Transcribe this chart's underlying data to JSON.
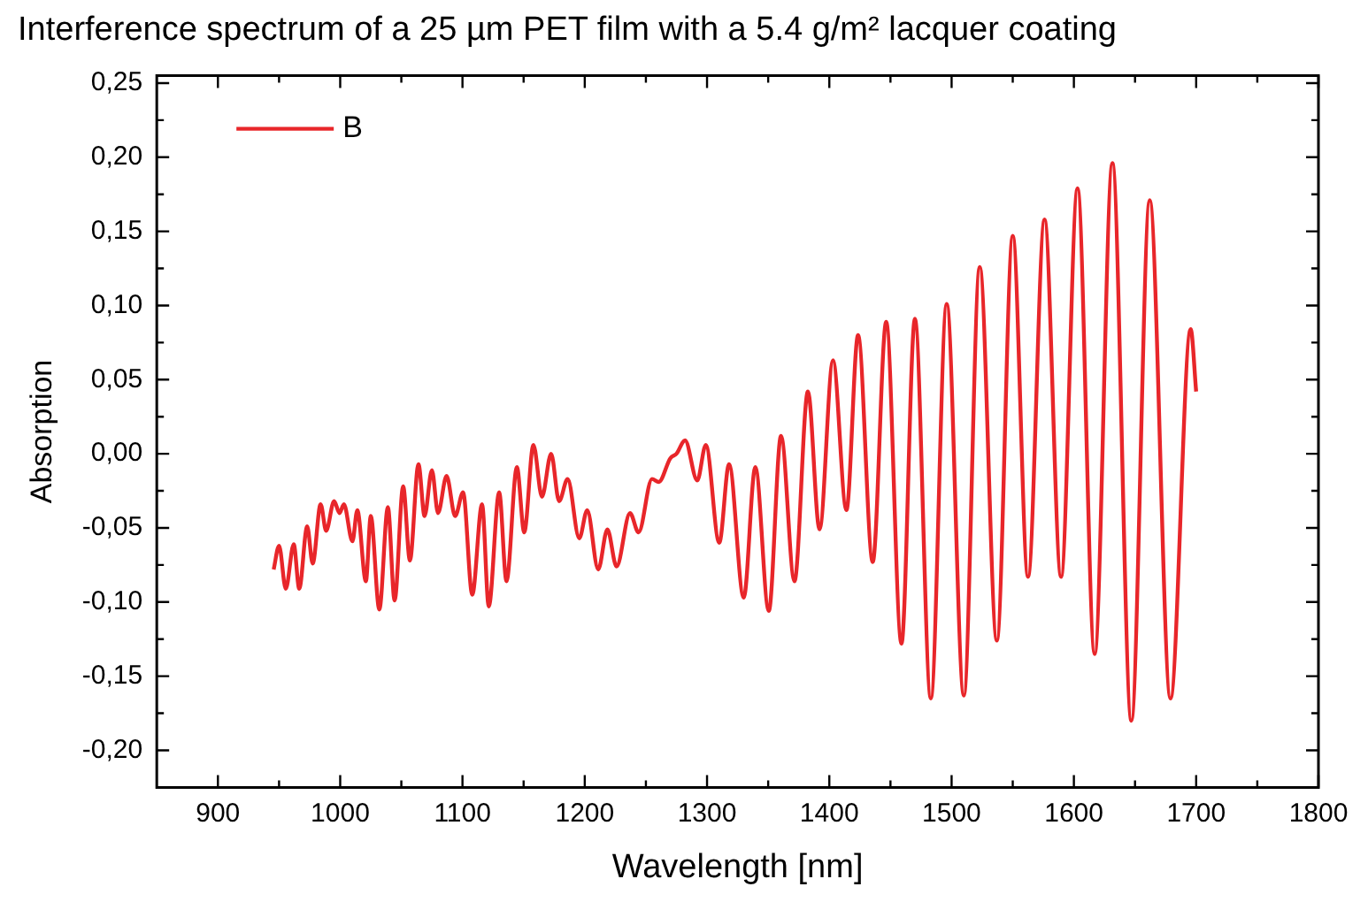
{
  "chart_data": {
    "type": "line",
    "title": "Interference spectrum of a 25 µm PET film with a 5.4 g/m² lacquer coating",
    "xlabel": "Wavelength [nm]",
    "ylabel": "Absorption",
    "x": [
      945.6,
      950,
      955.5,
      962,
      966.5,
      973,
      977.5,
      984,
      988.5,
      995,
      999.5,
      1003,
      1010,
      1014,
      1021,
      1025,
      1032,
      1039,
      1044.5,
      1051.5,
      1057,
      1064,
      1069,
      1075,
      1080,
      1087,
      1094,
      1100.5,
      1108,
      1116,
      1121.5,
      1130,
      1136,
      1144.5,
      1150.5,
      1158,
      1165,
      1172.5,
      1179,
      1186,
      1195.5,
      1202,
      1211,
      1218.5,
      1226,
      1237,
      1244,
      1255,
      1260.5,
      1270,
      1275,
      1282,
      1292,
      1299,
      1310,
      1318,
      1330,
      1339.5,
      1350.5,
      1360.5,
      1371.5,
      1382.5,
      1392,
      1403,
      1414,
      1423.5,
      1435.5,
      1446.5,
      1459,
      1470,
      1483,
      1496,
      1510,
      1523,
      1537,
      1550,
      1562.5,
      1576,
      1589.5,
      1603,
      1617,
      1631.5,
      1647,
      1662,
      1679,
      1695.5,
      1700
    ],
    "series": [
      {
        "name": "B",
        "color": "#e8262a",
        "values": [
          -0.078,
          -0.062,
          -0.091,
          -0.061,
          -0.091,
          -0.049,
          -0.074,
          -0.034,
          -0.052,
          -0.032,
          -0.04,
          -0.034,
          -0.059,
          -0.038,
          -0.086,
          -0.042,
          -0.105,
          -0.036,
          -0.099,
          -0.022,
          -0.072,
          -0.007,
          -0.042,
          -0.011,
          -0.04,
          -0.015,
          -0.042,
          -0.026,
          -0.095,
          -0.034,
          -0.103,
          -0.026,
          -0.086,
          -0.009,
          -0.053,
          0.006,
          -0.029,
          0,
          -0.032,
          -0.017,
          -0.057,
          -0.038,
          -0.078,
          -0.051,
          -0.076,
          -0.04,
          -0.053,
          -0.017,
          -0.019,
          -0.003,
          0,
          0.009,
          -0.018,
          0.006,
          -0.06,
          -0.007,
          -0.097,
          -0.009,
          -0.106,
          0.012,
          -0.086,
          0.042,
          -0.051,
          0.063,
          -0.038,
          0.08,
          -0.073,
          0.089,
          -0.128,
          0.091,
          -0.165,
          0.101,
          -0.163,
          0.126,
          -0.126,
          0.147,
          -0.083,
          0.158,
          -0.083,
          0.179,
          -0.135,
          0.196,
          -0.18,
          0.171,
          -0.165,
          0.084,
          0.042
        ]
      }
    ],
    "xlim": [
      850,
      1800
    ],
    "xticks": [
      900,
      {
        "value": 950,
        "label": null
      },
      1000,
      {
        "value": 1050,
        "label": null
      },
      1100,
      {
        "value": 1150,
        "label": null
      },
      1200,
      {
        "value": 1250,
        "label": null
      },
      1300,
      {
        "value": 1350,
        "label": null
      },
      1400,
      {
        "value": 1450,
        "label": null
      },
      1500,
      {
        "value": 1550,
        "label": null
      },
      1600,
      {
        "value": 1650,
        "label": null
      },
      1700,
      {
        "value": 1750,
        "label": null
      },
      1800
    ],
    "ylim": [
      -0.225,
      0.255
    ],
    "yticks": [
      {
        "value": -0.2,
        "label": "-0,20"
      },
      {
        "value": -0.175,
        "label": null
      },
      {
        "value": -0.15,
        "label": "-0,15"
      },
      {
        "value": -0.125,
        "label": null
      },
      {
        "value": -0.1,
        "label": "-0,10"
      },
      {
        "value": -0.075,
        "label": null
      },
      {
        "value": -0.05,
        "label": "-0,05"
      },
      {
        "value": -0.025,
        "label": null
      },
      {
        "value": 0,
        "label": "0,00"
      },
      {
        "value": 0.025,
        "label": null
      },
      {
        "value": 0.05,
        "label": "0,05"
      },
      {
        "value": 0.075,
        "label": null
      },
      {
        "value": 0.1,
        "label": "0,10"
      },
      {
        "value": 0.125,
        "label": null
      },
      {
        "value": 0.15,
        "label": "0,15"
      },
      {
        "value": 0.175,
        "label": null
      },
      {
        "value": 0.2,
        "label": "0,20"
      },
      {
        "value": 0.225,
        "label": null
      },
      {
        "value": 0.25,
        "label": "0,25"
      }
    ],
    "legend": "top left",
    "marker": "none",
    "line_style": "solid",
    "grid": false
  }
}
